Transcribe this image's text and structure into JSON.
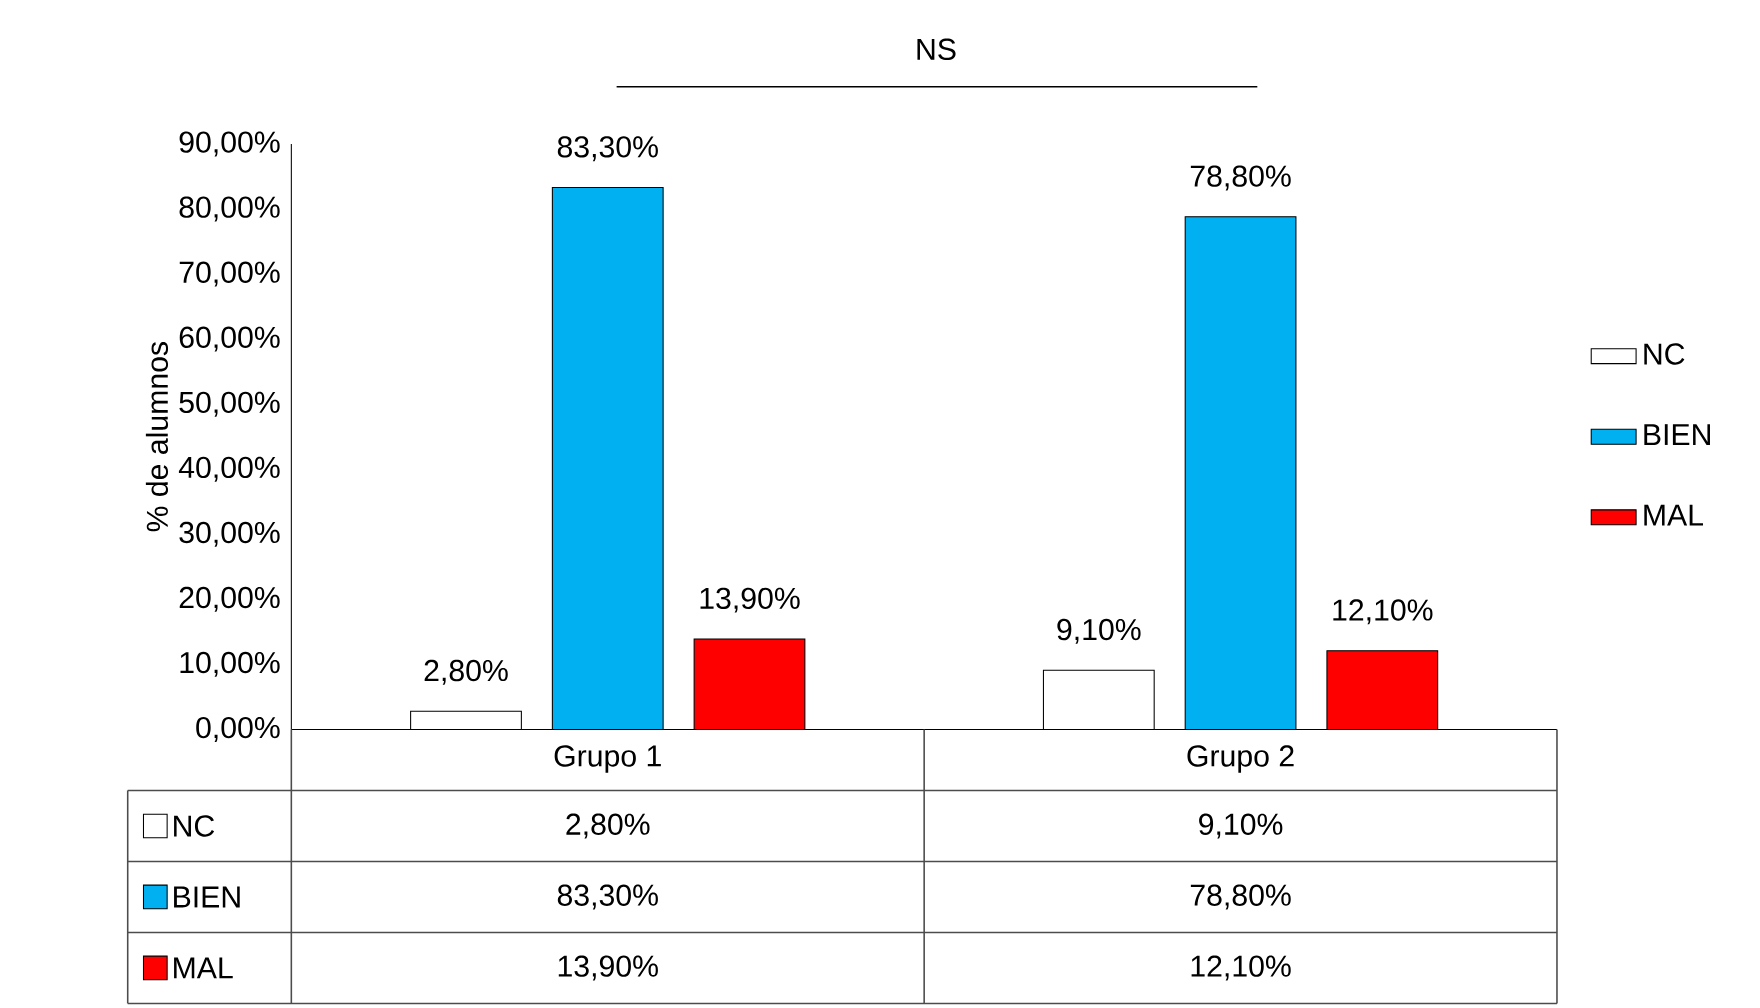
{
  "chart_data": {
    "type": "bar",
    "categories": [
      "Grupo 1",
      "Grupo 2"
    ],
    "series": [
      {
        "name": "NC",
        "color": "#ffffff",
        "values": [
          2.8,
          9.1
        ],
        "value_labels": [
          "2,80%",
          "9,10%"
        ]
      },
      {
        "name": "BIEN",
        "color": "#00b0f0",
        "values": [
          83.3,
          78.8
        ],
        "value_labels": [
          "83,30%",
          "78,80%"
        ]
      },
      {
        "name": "MAL",
        "color": "#ff0000",
        "values": [
          13.9,
          12.1
        ],
        "value_labels": [
          "13,90%",
          "12,10%"
        ]
      }
    ],
    "ylabel": "% de alumnos",
    "ylim": [
      0,
      90
    ],
    "yticks": [
      {
        "value": 0,
        "label": "0,00%"
      },
      {
        "value": 10,
        "label": "10,00%"
      },
      {
        "value": 20,
        "label": "20,00%"
      },
      {
        "value": 30,
        "label": "30,00%"
      },
      {
        "value": 40,
        "label": "40,00%"
      },
      {
        "value": 50,
        "label": "50,00%"
      },
      {
        "value": 60,
        "label": "60,00%"
      },
      {
        "value": 70,
        "label": "70,00%"
      },
      {
        "value": 80,
        "label": "80,00%"
      },
      {
        "value": 90,
        "label": "90,00%"
      }
    ],
    "annotations": [
      "NS"
    ],
    "grid": false,
    "legend": "right"
  }
}
